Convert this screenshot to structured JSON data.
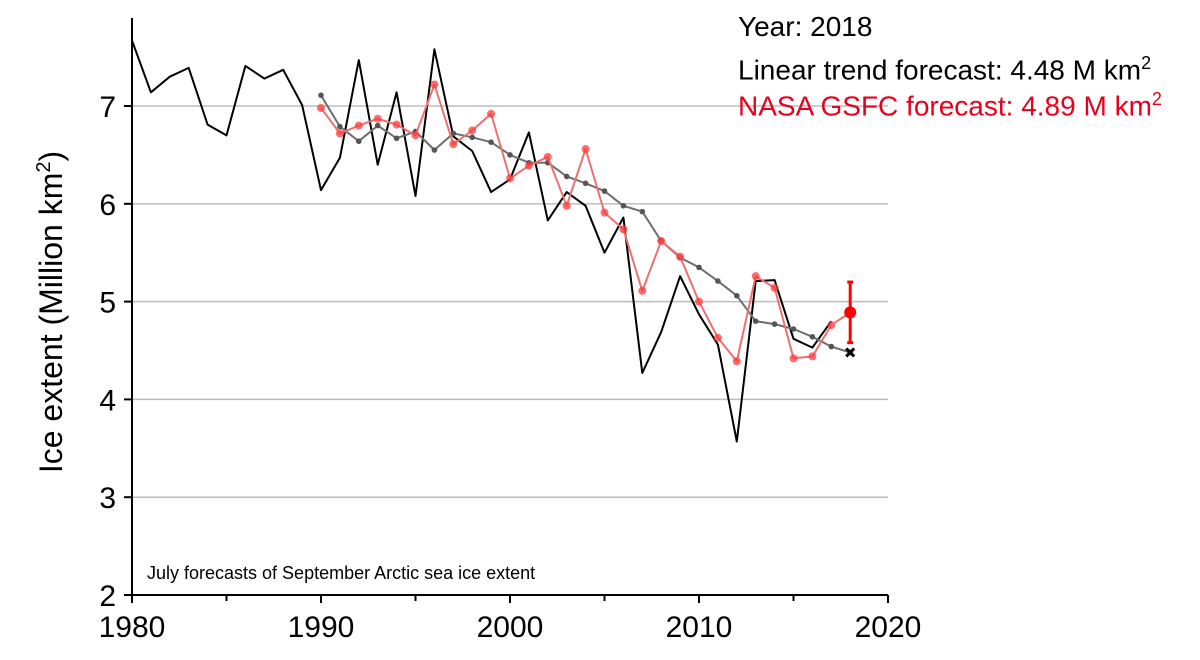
{
  "info": {
    "year_line": "Year: 2018",
    "trend_line": "Linear trend forecast: 4.48 M km",
    "trend_sup": "2",
    "nasa_line": "NASA GSFC forecast: 4.89 M km",
    "nasa_sup": "2"
  },
  "chart_data": {
    "type": "line",
    "ylabel_main": "Ice extent (Million km",
    "ylabel_sup": "2",
    "ylabel_end": ")",
    "annotation": "July forecasts of September Arctic sea ice extent",
    "xlim": [
      1980,
      2020
    ],
    "ylim": [
      2,
      7.9
    ],
    "x_ticks": [
      1980,
      1990,
      2000,
      2010,
      2020
    ],
    "x_ticks_minor": [
      1985,
      1995,
      2005,
      2015
    ],
    "y_ticks": [
      2,
      3,
      4,
      5,
      6,
      7
    ],
    "grid": "horizontal",
    "colors": {
      "observed": "#000000",
      "trend": "#6e6e6e",
      "nasa": "#ef6f6f",
      "nasa_point": "#ff0000"
    },
    "series": [
      {
        "key": "observed",
        "x": [
          1980,
          1981,
          1982,
          1983,
          1984,
          1985,
          1986,
          1987,
          1988,
          1989,
          1990,
          1991,
          1992,
          1993,
          1994,
          1995,
          1996,
          1997,
          1998,
          1999,
          2000,
          2001,
          2002,
          2003,
          2004,
          2005,
          2006,
          2007,
          2008,
          2009,
          2010,
          2011,
          2012,
          2013,
          2014,
          2015,
          2016,
          2017
        ],
        "y": [
          7.67,
          7.14,
          7.3,
          7.39,
          6.81,
          6.7,
          7.41,
          7.28,
          7.37,
          7.01,
          6.14,
          6.47,
          7.47,
          6.4,
          7.14,
          6.08,
          7.58,
          6.69,
          6.54,
          6.12,
          6.25,
          6.73,
          5.83,
          6.12,
          5.98,
          5.5,
          5.86,
          4.27,
          4.69,
          5.26,
          4.87,
          4.56,
          3.57,
          5.21,
          5.22,
          4.62,
          4.53,
          4.8
        ]
      },
      {
        "key": "trend",
        "x": [
          1990,
          1991,
          1992,
          1993,
          1994,
          1995,
          1996,
          1997,
          1998,
          1999,
          2000,
          2001,
          2002,
          2003,
          2004,
          2005,
          2006,
          2007,
          2008,
          2009,
          2010,
          2011,
          2012,
          2013,
          2014,
          2015,
          2016,
          2017,
          2018
        ],
        "y": [
          7.11,
          6.79,
          6.64,
          6.8,
          6.67,
          6.74,
          6.55,
          6.72,
          6.68,
          6.63,
          6.5,
          6.42,
          6.42,
          6.28,
          6.21,
          6.13,
          5.98,
          5.92,
          5.62,
          5.45,
          5.35,
          5.21,
          5.06,
          4.8,
          4.77,
          4.72,
          4.64,
          4.54,
          4.48
        ]
      },
      {
        "key": "nasa",
        "x": [
          1990,
          1991,
          1992,
          1993,
          1994,
          1995,
          1996,
          1997,
          1998,
          1999,
          2000,
          2001,
          2002,
          2003,
          2004,
          2005,
          2006,
          2007,
          2008,
          2009,
          2010,
          2011,
          2012,
          2013,
          2014,
          2015,
          2016,
          2017
        ],
        "y": [
          6.98,
          6.72,
          6.8,
          6.87,
          6.81,
          6.7,
          7.22,
          6.61,
          6.75,
          6.92,
          6.26,
          6.39,
          6.48,
          5.98,
          6.56,
          5.91,
          5.74,
          5.11,
          5.62,
          5.46,
          5.0,
          4.63,
          4.39,
          5.26,
          5.14,
          4.42,
          4.44,
          4.76
        ]
      }
    ],
    "forecast_2018": {
      "year": 2018,
      "nasa_value": 4.89,
      "nasa_error": [
        4.58,
        5.2
      ],
      "trend_value": 4.48
    }
  }
}
